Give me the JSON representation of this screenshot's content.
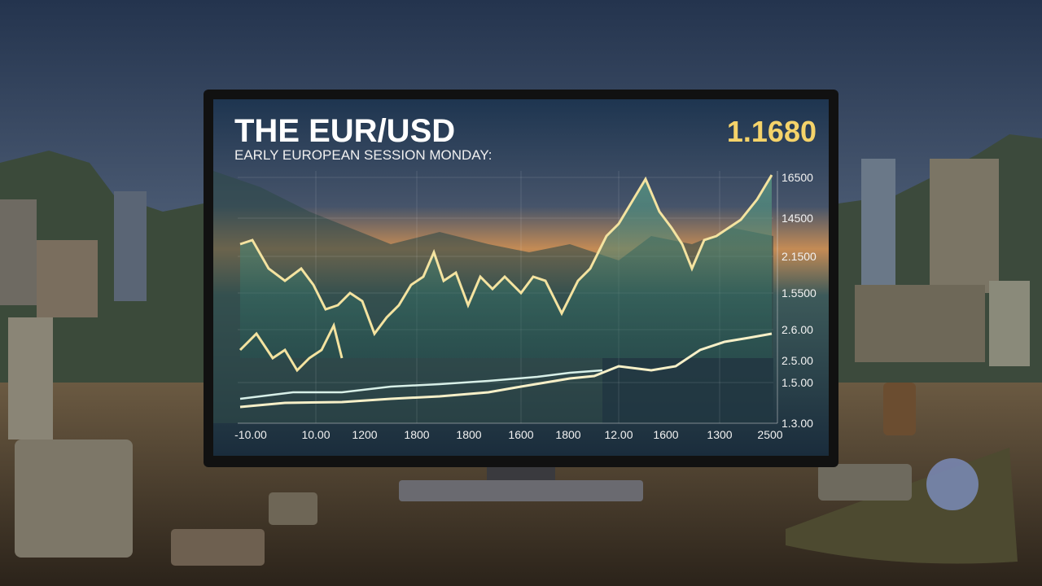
{
  "header": {
    "title": "THE EUR/USD",
    "subtitle": "EARLY EUROPEAN SESSION MONDAY:",
    "price": "1.1680"
  },
  "y_labels": [
    "16500",
    "14500",
    "2.1500",
    "1.5500",
    "2.6.00",
    "2.5.00",
    "1.5.00",
    "1.3.00"
  ],
  "x_labels": [
    "-10.00",
    "10.00",
    "1200",
    "1800",
    "1800",
    "1600",
    "1800",
    "12.00",
    "1600",
    "1300",
    "2500"
  ]
}
